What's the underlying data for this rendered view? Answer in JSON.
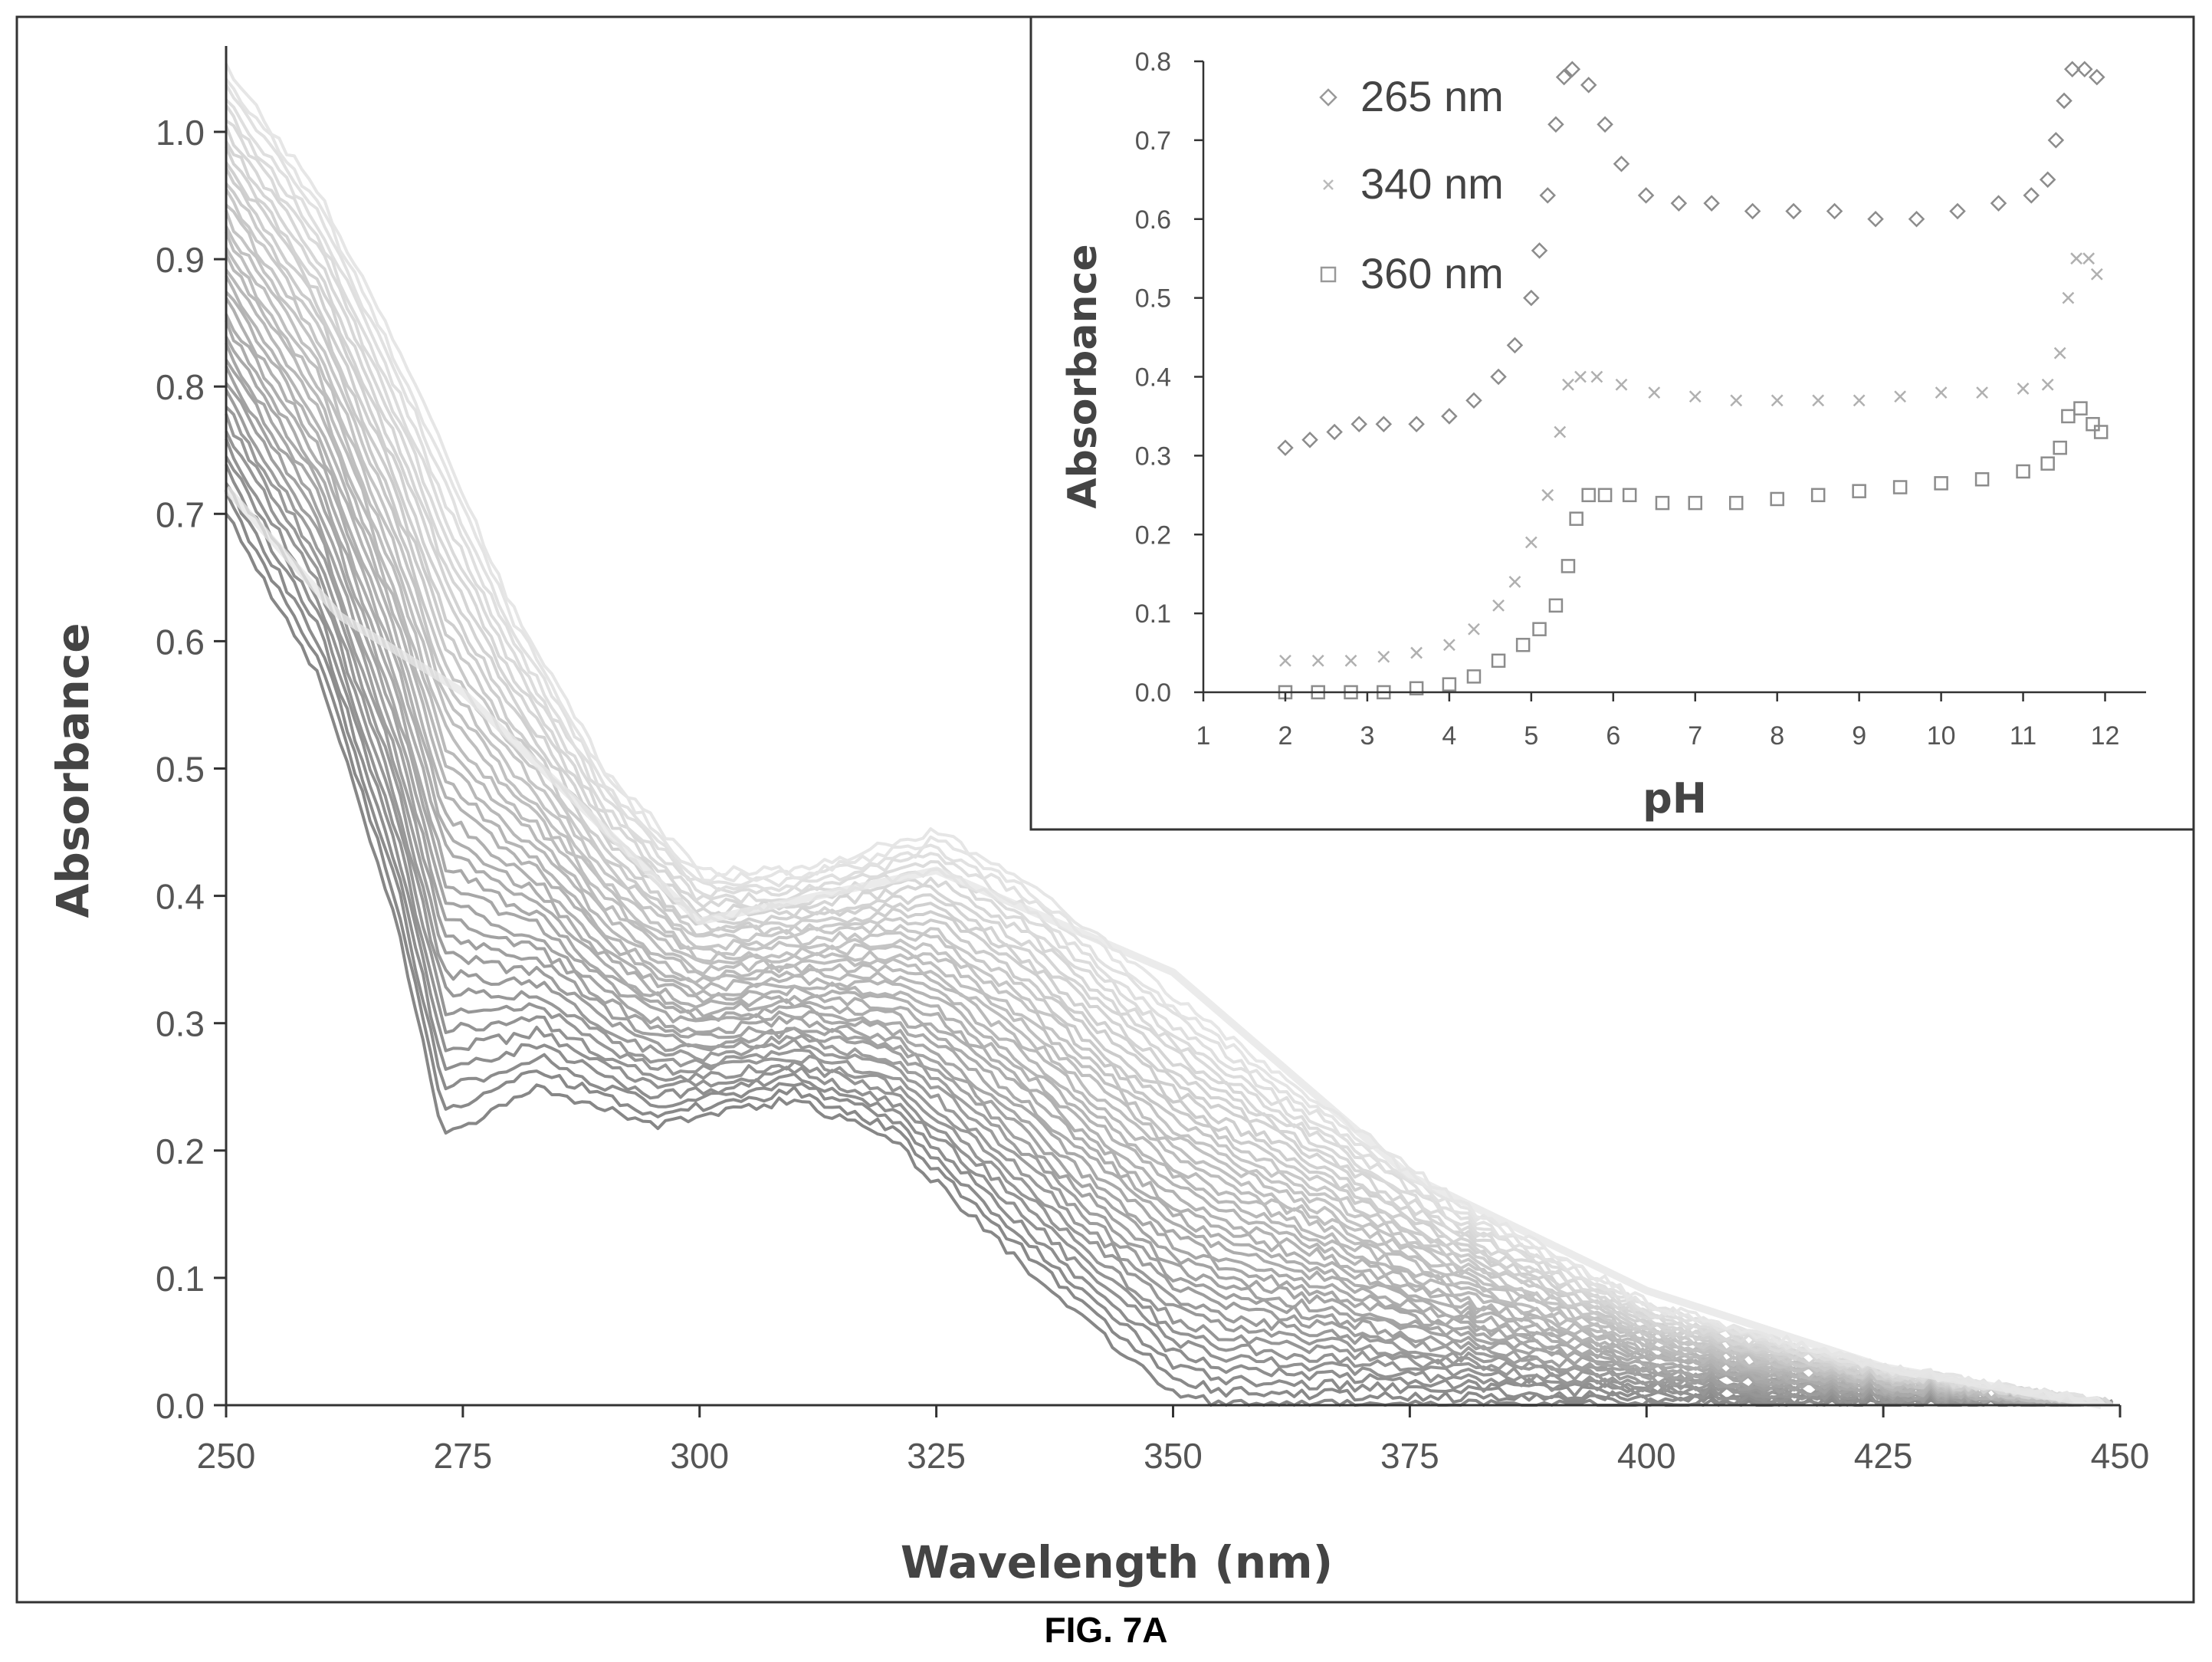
{
  "figure": {
    "caption": "FIG. 7A"
  },
  "chart_data": [
    {
      "id": "main",
      "type": "line",
      "title": "",
      "xlabel": "Wavelength (nm)",
      "ylabel": "Absorbance",
      "xlim": [
        250,
        450
      ],
      "ylim": [
        0.0,
        1.05
      ],
      "x_ticks": [
        "250",
        "275",
        "300",
        "325",
        "350",
        "375",
        "400",
        "425",
        "450"
      ],
      "y_ticks": [
        "0.0",
        "0.1",
        "0.2",
        "0.3",
        "0.4",
        "0.5",
        "0.6",
        "0.7",
        "0.8",
        "0.9",
        "1.0"
      ],
      "grid": false,
      "series_count": 40,
      "spectrum_envelope": {
        "low_pH": [
          [
            250,
            0.7
          ],
          [
            260,
            0.57
          ],
          [
            268,
            0.38
          ],
          [
            273,
            0.21
          ],
          [
            283,
            0.25
          ],
          [
            295,
            0.22
          ],
          [
            310,
            0.24
          ],
          [
            320,
            0.21
          ],
          [
            330,
            0.14
          ],
          [
            340,
            0.07
          ],
          [
            350,
            0.01
          ],
          [
            355,
            0.0
          ]
        ],
        "high_pH": [
          [
            250,
            1.05
          ],
          [
            260,
            0.95
          ],
          [
            270,
            0.8
          ],
          [
            280,
            0.63
          ],
          [
            290,
            0.5
          ],
          [
            300,
            0.42
          ],
          [
            310,
            0.42
          ],
          [
            325,
            0.45
          ],
          [
            335,
            0.41
          ],
          [
            350,
            0.32
          ],
          [
            365,
            0.24
          ],
          [
            380,
            0.16
          ],
          [
            400,
            0.08
          ],
          [
            425,
            0.03
          ],
          [
            450,
            0.0
          ]
        ],
        "isosbestic": [
          [
            250,
            0.72
          ],
          [
            262,
            0.62
          ],
          [
            275,
            0.56
          ],
          [
            300,
            0.38
          ],
          [
            325,
            0.42
          ],
          [
            350,
            0.34
          ],
          [
            375,
            0.18
          ],
          [
            400,
            0.09
          ],
          [
            425,
            0.03
          ],
          [
            448,
            0.0
          ]
        ]
      }
    },
    {
      "id": "inset",
      "type": "scatter",
      "xlabel": "pH",
      "ylabel": "Absorbance",
      "xlim": [
        1,
        12.5
      ],
      "ylim": [
        0.0,
        0.8
      ],
      "x_ticks": [
        "1",
        "2",
        "3",
        "4",
        "5",
        "6",
        "7",
        "8",
        "9",
        "10",
        "11",
        "12"
      ],
      "y_ticks": [
        "0.0",
        "0.1",
        "0.2",
        "0.3",
        "0.4",
        "0.5",
        "0.6",
        "0.7",
        "0.8"
      ],
      "legend_position": "top-left",
      "series": [
        {
          "name": "265 nm",
          "marker": "diamond",
          "points": [
            [
              2.0,
              0.31
            ],
            [
              2.3,
              0.32
            ],
            [
              2.6,
              0.33
            ],
            [
              2.9,
              0.34
            ],
            [
              3.2,
              0.34
            ],
            [
              3.6,
              0.34
            ],
            [
              4.0,
              0.35
            ],
            [
              4.3,
              0.37
            ],
            [
              4.6,
              0.4
            ],
            [
              4.8,
              0.44
            ],
            [
              5.0,
              0.5
            ],
            [
              5.1,
              0.56
            ],
            [
              5.2,
              0.63
            ],
            [
              5.3,
              0.72
            ],
            [
              5.4,
              0.78
            ],
            [
              5.5,
              0.79
            ],
            [
              5.7,
              0.77
            ],
            [
              5.9,
              0.72
            ],
            [
              6.1,
              0.67
            ],
            [
              6.4,
              0.63
            ],
            [
              6.8,
              0.62
            ],
            [
              7.2,
              0.62
            ],
            [
              7.7,
              0.61
            ],
            [
              8.2,
              0.61
            ],
            [
              8.7,
              0.61
            ],
            [
              9.2,
              0.6
            ],
            [
              9.7,
              0.6
            ],
            [
              10.2,
              0.61
            ],
            [
              10.7,
              0.62
            ],
            [
              11.1,
              0.63
            ],
            [
              11.3,
              0.65
            ],
            [
              11.4,
              0.7
            ],
            [
              11.5,
              0.75
            ],
            [
              11.6,
              0.79
            ],
            [
              11.75,
              0.79
            ],
            [
              11.9,
              0.78
            ]
          ]
        },
        {
          "name": "340 nm",
          "marker": "x",
          "points": [
            [
              2.0,
              0.04
            ],
            [
              2.4,
              0.04
            ],
            [
              2.8,
              0.04
            ],
            [
              3.2,
              0.045
            ],
            [
              3.6,
              0.05
            ],
            [
              4.0,
              0.06
            ],
            [
              4.3,
              0.08
            ],
            [
              4.6,
              0.11
            ],
            [
              4.8,
              0.14
            ],
            [
              5.0,
              0.19
            ],
            [
              5.2,
              0.25
            ],
            [
              5.35,
              0.33
            ],
            [
              5.45,
              0.39
            ],
            [
              5.6,
              0.4
            ],
            [
              5.8,
              0.4
            ],
            [
              6.1,
              0.39
            ],
            [
              6.5,
              0.38
            ],
            [
              7.0,
              0.375
            ],
            [
              7.5,
              0.37
            ],
            [
              8.0,
              0.37
            ],
            [
              8.5,
              0.37
            ],
            [
              9.0,
              0.37
            ],
            [
              9.5,
              0.375
            ],
            [
              10.0,
              0.38
            ],
            [
              10.5,
              0.38
            ],
            [
              11.0,
              0.385
            ],
            [
              11.3,
              0.39
            ],
            [
              11.45,
              0.43
            ],
            [
              11.55,
              0.5
            ],
            [
              11.65,
              0.55
            ],
            [
              11.8,
              0.55
            ],
            [
              11.9,
              0.53
            ]
          ]
        },
        {
          "name": "360 nm",
          "marker": "square",
          "points": [
            [
              2.0,
              0.0
            ],
            [
              2.4,
              0.0
            ],
            [
              2.8,
              0.0
            ],
            [
              3.2,
              0.0
            ],
            [
              3.6,
              0.005
            ],
            [
              4.0,
              0.01
            ],
            [
              4.3,
              0.02
            ],
            [
              4.6,
              0.04
            ],
            [
              4.9,
              0.06
            ],
            [
              5.1,
              0.08
            ],
            [
              5.3,
              0.11
            ],
            [
              5.45,
              0.16
            ],
            [
              5.55,
              0.22
            ],
            [
              5.7,
              0.25
            ],
            [
              5.9,
              0.25
            ],
            [
              6.2,
              0.25
            ],
            [
              6.6,
              0.24
            ],
            [
              7.0,
              0.24
            ],
            [
              7.5,
              0.24
            ],
            [
              8.0,
              0.245
            ],
            [
              8.5,
              0.25
            ],
            [
              9.0,
              0.255
            ],
            [
              9.5,
              0.26
            ],
            [
              10.0,
              0.265
            ],
            [
              10.5,
              0.27
            ],
            [
              11.0,
              0.28
            ],
            [
              11.3,
              0.29
            ],
            [
              11.45,
              0.31
            ],
            [
              11.55,
              0.35
            ],
            [
              11.7,
              0.36
            ],
            [
              11.85,
              0.34
            ],
            [
              11.95,
              0.33
            ]
          ]
        }
      ]
    }
  ]
}
